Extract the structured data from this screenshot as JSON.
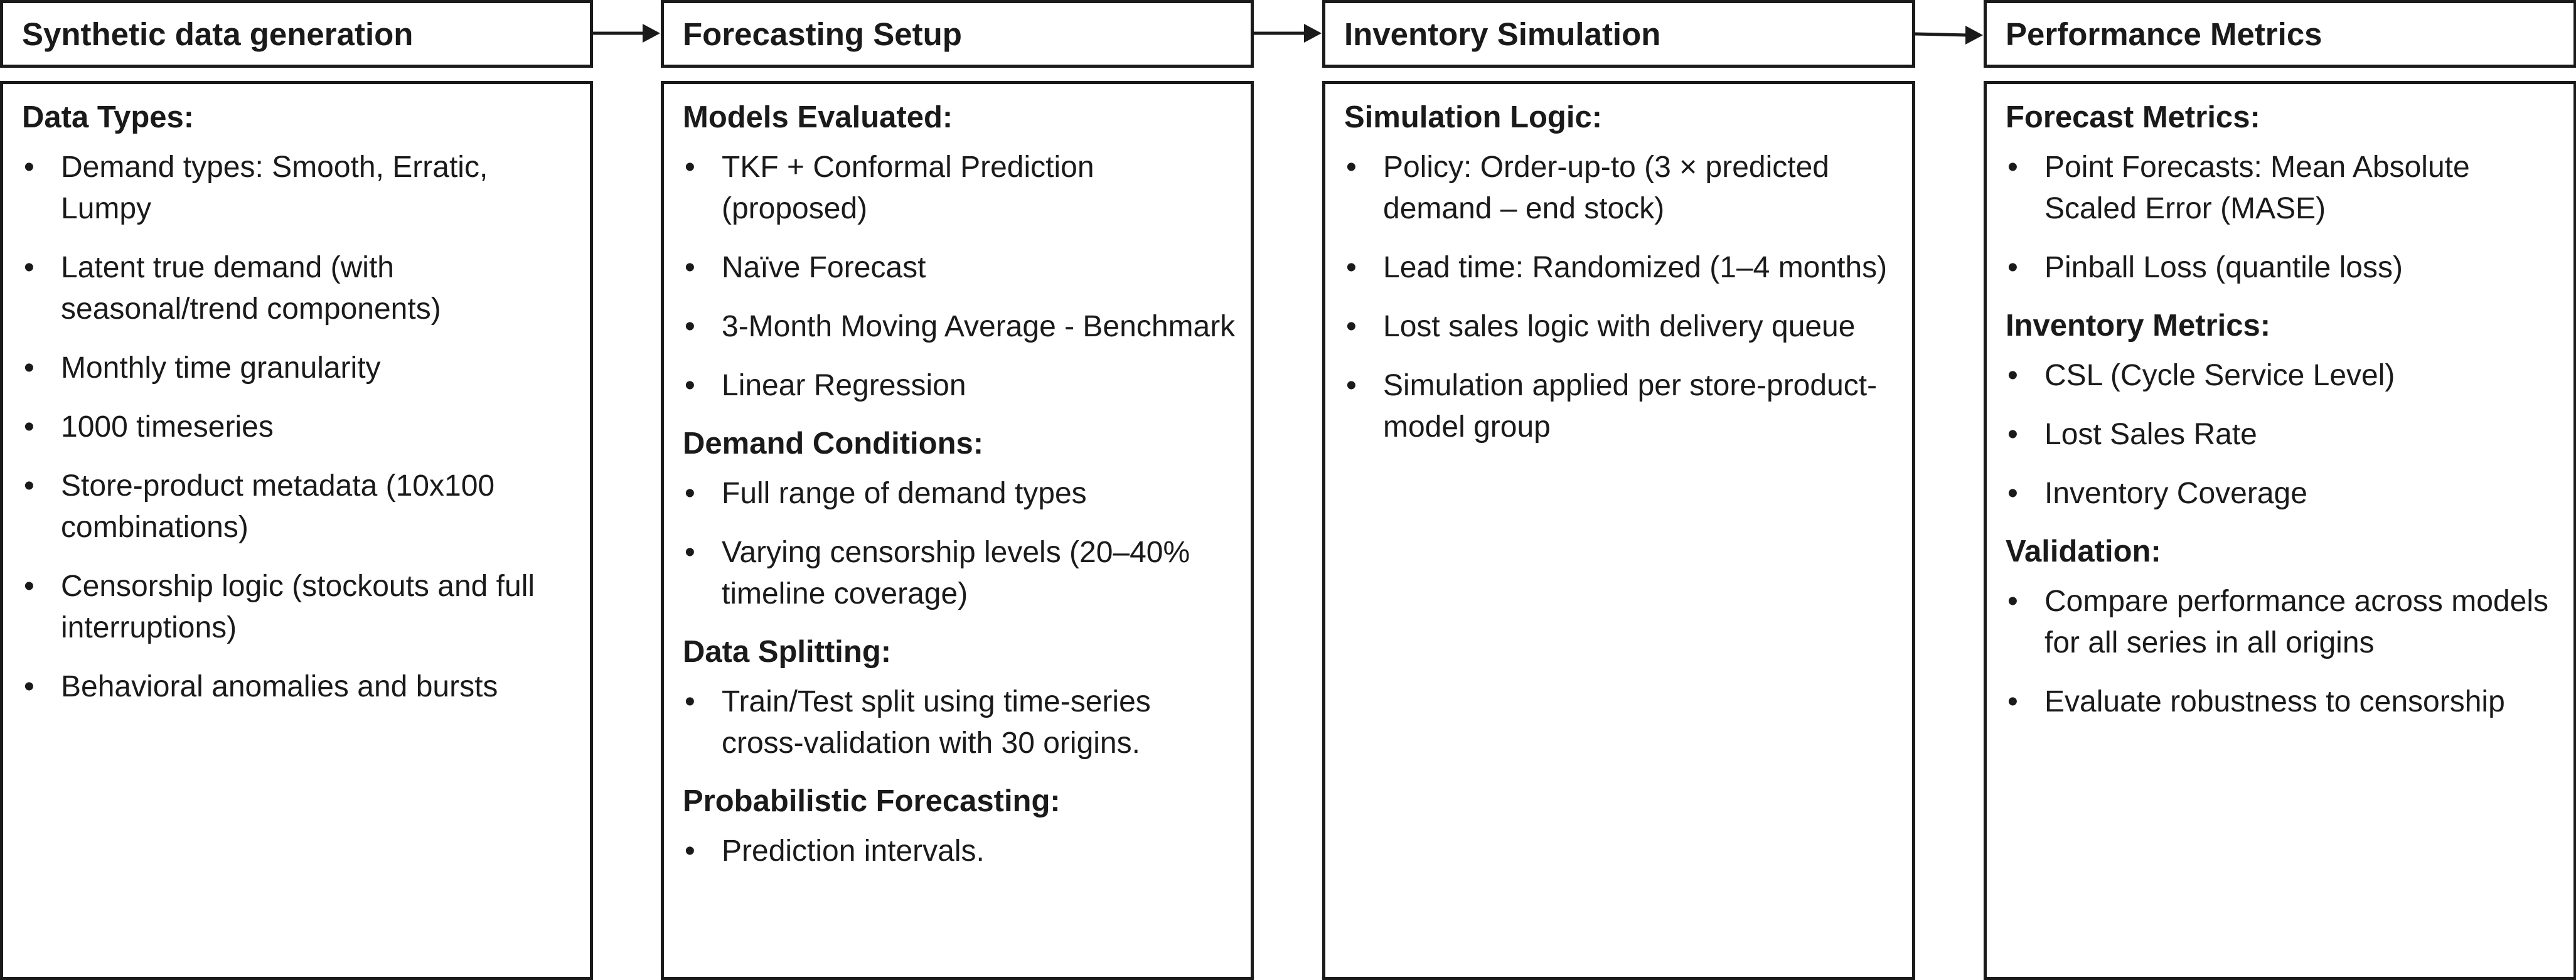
{
  "steps": [
    {
      "title": "Synthetic data generation",
      "sections": [
        {
          "heading": "Data Types:",
          "items": [
            "Demand types: Smooth, Erratic, Lumpy",
            "Latent true demand (with seasonal/trend components)",
            "Monthly time granularity",
            "1000 timeseries",
            "Store-product metadata (10x100 combinations)",
            "Censorship logic (stockouts and full interruptions)",
            "Behavioral anomalies and bursts"
          ]
        }
      ]
    },
    {
      "title": "Forecasting Setup",
      "sections": [
        {
          "heading": "Models Evaluated:",
          "items": [
            "TKF + Conformal Prediction (proposed)",
            "Naïve Forecast",
            "3-Month Moving Average - Benchmark",
            "Linear Regression"
          ]
        },
        {
          "heading": "Demand Conditions:",
          "items": [
            "Full range of demand types",
            "Varying censorship levels (20–40% timeline coverage)"
          ]
        },
        {
          "heading": "Data Splitting:",
          "items": [
            "Train/Test split using time-series cross-validation with 30 origins."
          ]
        },
        {
          "heading": "Probabilistic Forecasting:",
          "items": [
            "Prediction intervals."
          ]
        }
      ]
    },
    {
      "title": "Inventory Simulation",
      "sections": [
        {
          "heading": "Simulation Logic:",
          "items": [
            "Policy: Order-up-to (3 × predicted demand – end stock)",
            "Lead time: Randomized (1–4 months)",
            "Lost sales logic with delivery queue",
            "Simulation applied per store-product-model group"
          ]
        }
      ]
    },
    {
      "title": "Performance Metrics",
      "sections": [
        {
          "heading": "Forecast Metrics:",
          "items": [
            "Point Forecasts: Mean Absolute Scaled Error (MASE)",
            "Pinball Loss (quantile loss)"
          ]
        },
        {
          "heading": "Inventory Metrics:",
          "items": [
            "CSL (Cycle Service Level)",
            "Lost Sales Rate",
            "Inventory Coverage"
          ]
        },
        {
          "heading": "Validation:",
          "items": [
            "Compare performance across models for all series in all origins",
            "Evaluate robustness to censorship"
          ]
        }
      ]
    }
  ],
  "bullet_glyph": "•",
  "colors": {
    "stroke": "#1a1a1a",
    "background": "#ffffff"
  }
}
